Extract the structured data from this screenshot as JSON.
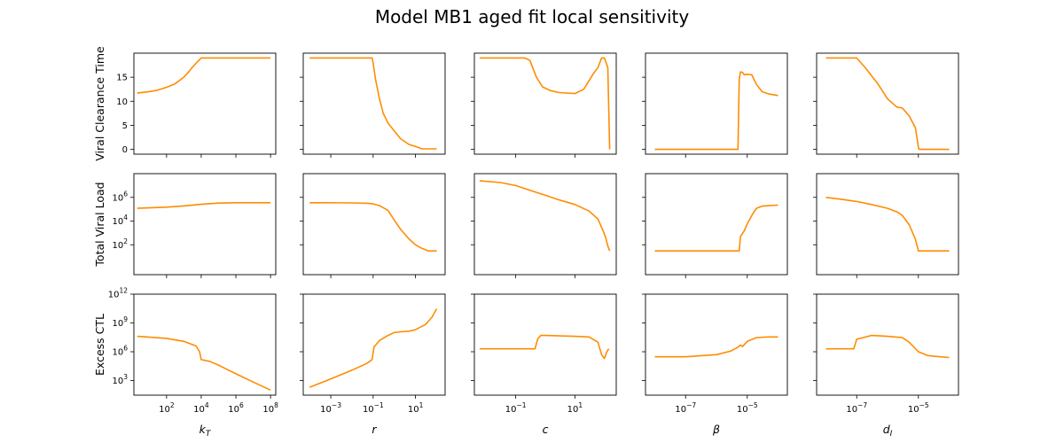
{
  "title": "Model MB1 aged fit local sensitivity",
  "colors": {
    "series": "#ff8c00",
    "axes": "#000000"
  },
  "chart_data": {
    "type": "line",
    "layout": "grid",
    "title": "Model MB1 aged fit local sensitivity",
    "rows": [
      {
        "ylabel": "Viral Clearance Time",
        "yscale": "linear",
        "ylim": [
          -1,
          20
        ],
        "yticks": [
          0,
          5,
          10,
          15
        ],
        "ytick_labels": [
          "0",
          "5",
          "10",
          "15"
        ]
      },
      {
        "ylabel": "Total Viral Load",
        "yscale": "log",
        "ylim": [
          0.3,
          100000000.0
        ],
        "yticks": [
          100,
          10000,
          1000000
        ],
        "ytick_labels": [
          "10^2",
          "10^4",
          "10^6"
        ]
      },
      {
        "ylabel": "Excess CTL",
        "yscale": "log",
        "ylim": [
          30,
          1000000000000.0
        ],
        "yticks": [
          1000,
          1000000,
          1000000000,
          1000000000000
        ],
        "ytick_labels": [
          "10^3",
          "10^6",
          "10^9",
          "10^12"
        ]
      }
    ],
    "columns": [
      {
        "xlabel_base": "k",
        "xlabel_sub": "T",
        "xscale": "log",
        "xlim": [
          1.3,
          200000000.0
        ],
        "xticks": [
          100,
          10000,
          1000000,
          100000000
        ],
        "xtick_labels": [
          "10^2",
          "10^4",
          "10^6",
          "10^8"
        ]
      },
      {
        "xlabel_base": "r",
        "xlabel_sub": "",
        "xscale": "log",
        "xlim": [
          5e-05,
          250
        ],
        "xticks": [
          0.001,
          0.1,
          10
        ],
        "xtick_labels": [
          "10^-3",
          "10^-1",
          "10^1"
        ]
      },
      {
        "xlabel_base": "c",
        "xlabel_sub": "",
        "xscale": "log",
        "xlim": [
          0.004,
          250
        ],
        "xticks": [
          0.1,
          10
        ],
        "xtick_labels": [
          "10^-1",
          "10^1"
        ]
      },
      {
        "xlabel_base": "β",
        "xlabel_sub": "",
        "xscale": "log",
        "xlim": [
          5e-09,
          0.0002
        ],
        "xticks": [
          1e-07,
          1e-05
        ],
        "xtick_labels": [
          "10^-7",
          "10^-5"
        ]
      },
      {
        "xlabel_base": "d",
        "xlabel_sub": "I",
        "xscale": "log",
        "xlim": [
          5e-09,
          0.0002
        ],
        "xticks": [
          1e-07,
          1e-05
        ],
        "xtick_labels": [
          "10^-7",
          "10^-5"
        ]
      }
    ],
    "panels": [
      [
        {
          "x": [
            2,
            10,
            30,
            100,
            300,
            1000,
            2000,
            3000,
            5000,
            10000,
            100000,
            1000000,
            10000000,
            100000000
          ],
          "y": [
            11.7,
            12.0,
            12.3,
            12.9,
            13.6,
            15.0,
            16.2,
            17.0,
            17.9,
            19.0,
            19.0,
            19.0,
            19.0,
            19.0
          ]
        },
        {
          "x": [
            0.0001,
            0.001,
            0.01,
            0.09,
            0.1,
            0.13,
            0.2,
            0.3,
            0.5,
            1,
            2,
            5,
            10,
            20,
            50,
            100
          ],
          "y": [
            19.0,
            19.0,
            19.0,
            19.0,
            18.0,
            14.5,
            10.5,
            7.5,
            5.5,
            3.8,
            2.2,
            1.0,
            0.6,
            0.1,
            0.1,
            0.1
          ]
        },
        {
          "x": [
            0.006,
            0.05,
            0.2,
            0.3,
            0.5,
            0.8,
            1.5,
            3,
            10,
            20,
            40,
            60,
            80,
            100,
            130,
            150
          ],
          "y": [
            19.0,
            19.0,
            19.0,
            18.5,
            15.0,
            13.0,
            12.2,
            11.8,
            11.6,
            12.5,
            15.5,
            17.0,
            19.0,
            19.0,
            17.0,
            0.0
          ]
        },
        {
          "x": [
            1e-08,
            1e-07,
            1e-06,
            5e-06,
            5.5e-06,
            6e-06,
            7e-06,
            8e-06,
            1e-05,
            1.4e-05,
            2e-05,
            3e-05,
            5e-05,
            0.0001
          ],
          "y": [
            0.0,
            0.0,
            0.0,
            0.0,
            14.5,
            16.1,
            16.0,
            15.5,
            15.6,
            15.5,
            13.5,
            12.0,
            11.5,
            11.2
          ]
        },
        {
          "x": [
            1e-08,
            3e-08,
            1e-07,
            2e-07,
            5e-07,
            1e-06,
            2e-06,
            3e-06,
            5e-06,
            8e-06,
            1e-05,
            1.05e-05,
            2e-05,
            5e-05,
            0.0001
          ],
          "y": [
            19.0,
            19.0,
            19.0,
            16.8,
            13.5,
            10.5,
            8.8,
            8.6,
            7.0,
            4.5,
            0.5,
            0.0,
            0.0,
            0.0,
            0.0
          ]
        }
      ],
      [
        {
          "x": [
            2,
            100,
            1000,
            10000,
            100000,
            1000000,
            100000000
          ],
          "y": [
            120000,
            150000,
            190000,
            260000,
            330000,
            350000,
            350000
          ]
        },
        {
          "x": [
            0.0001,
            0.001,
            0.01,
            0.05,
            0.1,
            0.2,
            0.5,
            1,
            2,
            5,
            10,
            20,
            40,
            100
          ],
          "y": [
            350000,
            350000,
            340000,
            320000,
            280000,
            200000,
            80000,
            12000,
            2000,
            300,
            100,
            50,
            30,
            30
          ]
        },
        {
          "x": [
            0.006,
            0.03,
            0.1,
            0.3,
            1,
            3,
            10,
            30,
            60,
            90,
            110,
            130,
            150
          ],
          "y": [
            25000000,
            18000000,
            10000000,
            4000000,
            1500000,
            600000,
            250000,
            70000,
            15000,
            1500,
            400,
            80,
            30
          ]
        },
        {
          "x": [
            1e-08,
            1e-07,
            1e-06,
            5.5e-06,
            6e-06,
            8e-06,
            1e-05,
            1.5e-05,
            2e-05,
            3e-05,
            5e-05,
            0.0001
          ],
          "y": [
            30,
            30,
            30,
            30,
            500,
            1500,
            6000,
            40000,
            120000,
            180000,
            200000,
            220000
          ]
        },
        {
          "x": [
            1e-08,
            3e-08,
            1e-07,
            3e-07,
            1e-06,
            2e-06,
            3e-06,
            5e-06,
            8e-06,
            1e-05,
            1.1e-05,
            2e-05,
            5e-05,
            0.0001
          ],
          "y": [
            1000000,
            700000,
            450000,
            250000,
            120000,
            60000,
            30000,
            5000,
            300,
            30,
            30,
            30,
            30,
            30
          ]
        }
      ],
      [
        {
          "x": [
            2,
            100,
            1000,
            5000,
            8000,
            10000,
            30000,
            100000,
            1000000,
            10000000,
            100000000
          ],
          "y": [
            40000000,
            25000000,
            12000000,
            4000000,
            1000000,
            150000,
            100000,
            40000,
            5000,
            700,
            100
          ]
        },
        {
          "x": [
            0.0001,
            0.001,
            0.01,
            0.05,
            0.09,
            0.11,
            0.2,
            0.5,
            1,
            2,
            5,
            10,
            30,
            60,
            100
          ],
          "y": [
            200,
            1500,
            12000,
            60000,
            150000,
            3000000,
            15000000,
            50000000,
            100000000,
            120000000,
            140000000,
            200000000,
            700000000,
            4000000000,
            30000000000
          ]
        },
        {
          "x": [
            0.006,
            0.1,
            0.45,
            0.55,
            0.7,
            1,
            3,
            10,
            30,
            60,
            80,
            100,
            120,
            140
          ],
          "y": [
            2000000,
            2000000,
            2000000,
            20000000,
            50000000,
            50000000,
            45000000,
            40000000,
            35000000,
            10000000,
            500000,
            200000,
            1000000,
            2000000
          ]
        },
        {
          "x": [
            1e-08,
            1e-07,
            1e-06,
            3e-06,
            5e-06,
            6e-06,
            7e-06,
            1e-05,
            2e-05,
            5e-05,
            0.0001
          ],
          "y": [
            300000,
            300000,
            500000,
            1200000,
            3000000,
            5000000,
            3500000,
            12000000,
            30000000,
            35000000,
            35000000
          ]
        },
        {
          "x": [
            1e-08,
            5e-08,
            8e-08,
            1e-07,
            3e-07,
            1e-06,
            3e-06,
            5e-06,
            1e-05,
            2e-05,
            5e-05,
            0.0001
          ],
          "y": [
            2000000,
            2000000,
            2000000,
            20000000,
            50000000,
            40000000,
            30000000,
            10000000,
            1000000,
            400000,
            300000,
            250000
          ]
        }
      ]
    ]
  }
}
